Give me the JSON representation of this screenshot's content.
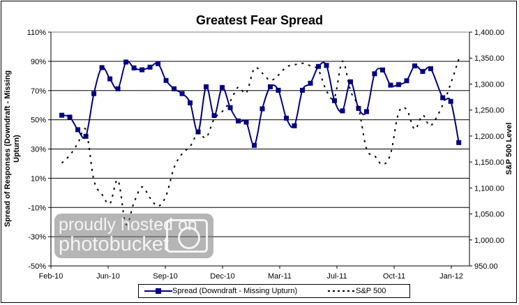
{
  "chart_data": {
    "type": "line",
    "title": "Greatest Fear Spread",
    "ylabel": "Spread of Responses (Downdraft - Missing Upturn)",
    "y2label": "S&P 500 Level",
    "xlabel": "",
    "ylim": [
      -50,
      110
    ],
    "y2lim": [
      950,
      1400
    ],
    "yticks": [
      "110%",
      "90%",
      "70%",
      "50%",
      "30%",
      "10%",
      "-10%",
      "-30%",
      "-50%"
    ],
    "y2ticks": [
      "1,400.00",
      "1,350.00",
      "1,300.00",
      "1,250.00",
      "1,200.00",
      "1,150.00",
      "1,100.00",
      "1,050.00",
      "1,000.00",
      "950.00"
    ],
    "xticks": [
      "Feb-10",
      "Jun-10",
      "Sep-10",
      "Dec-10",
      "Mar-11",
      "Jul-11",
      "Oct-11",
      "Jan-12"
    ],
    "xlim": [
      "2010-02-01",
      "2012-01-01"
    ],
    "grid": "horizontal",
    "legend_position": "bottom",
    "x": [
      "2010-02-20",
      "2010-03-06",
      "2010-03-20",
      "2010-04-03",
      "2010-04-17",
      "2010-05-01",
      "2010-05-15",
      "2010-05-29",
      "2010-06-12",
      "2010-06-26",
      "2010-07-10",
      "2010-07-24",
      "2010-08-07",
      "2010-08-21",
      "2010-09-04",
      "2010-09-18",
      "2010-10-02",
      "2010-10-16",
      "2010-10-30",
      "2010-11-13",
      "2010-11-27",
      "2010-12-11",
      "2010-12-25",
      "2011-01-08",
      "2011-01-22",
      "2011-02-05",
      "2011-02-19",
      "2011-03-05",
      "2011-03-19",
      "2011-04-02",
      "2011-04-16",
      "2011-04-30",
      "2011-05-14",
      "2011-05-28",
      "2011-06-11",
      "2011-06-25",
      "2011-07-09",
      "2011-07-23",
      "2011-08-06",
      "2011-08-20",
      "2011-09-03",
      "2011-09-17",
      "2011-10-01",
      "2011-10-15",
      "2011-10-29",
      "2011-11-12",
      "2011-11-26",
      "2011-12-17",
      "2011-12-31",
      "2012-01-14"
    ],
    "series": [
      {
        "name": "Spread (Downdraft - Missing Upturn)",
        "axis": "left",
        "color": "#000080",
        "style": "solid-square-markers",
        "values": [
          53.1,
          51.8,
          43.2,
          38.7,
          67.9,
          85.7,
          78.0,
          71.2,
          89.5,
          85.5,
          84.2,
          86.0,
          88.4,
          76.9,
          71.2,
          67.9,
          61.6,
          41.7,
          72.6,
          52.9,
          72.1,
          58.3,
          49.2,
          48.4,
          32.5,
          57.5,
          72.6,
          70.2,
          51.1,
          45.9,
          70.2,
          75.0,
          86.5,
          87.2,
          63.1,
          56.1,
          76.0,
          57.8,
          55.6,
          81.5,
          84.1,
          73.7,
          74.1,
          76.7,
          86.9,
          83.1,
          85.0,
          65.1,
          62.6,
          34.4
        ]
      },
      {
        "name": "S&P 500",
        "axis": "right",
        "color": "#000000",
        "style": "dashed",
        "values": [
          1148,
          1163,
          1186,
          1212,
          1115,
          1088,
          1070,
          1115,
          1030,
          1072,
          1102,
          1081,
          1065,
          1085,
          1139,
          1166,
          1180,
          1206,
          1197,
          1233,
          1247,
          1267,
          1294,
          1283,
          1330,
          1321,
          1307,
          1317,
          1333,
          1337,
          1340,
          1335,
          1327,
          1287,
          1274,
          1344,
          1287,
          1254,
          1175,
          1162,
          1145,
          1166,
          1245,
          1251,
          1213,
          1240,
          1220,
          1260,
          1301,
          1348
        ]
      }
    ]
  },
  "watermark": {
    "line1": "proudly hosted on",
    "line2": "photobucket"
  }
}
